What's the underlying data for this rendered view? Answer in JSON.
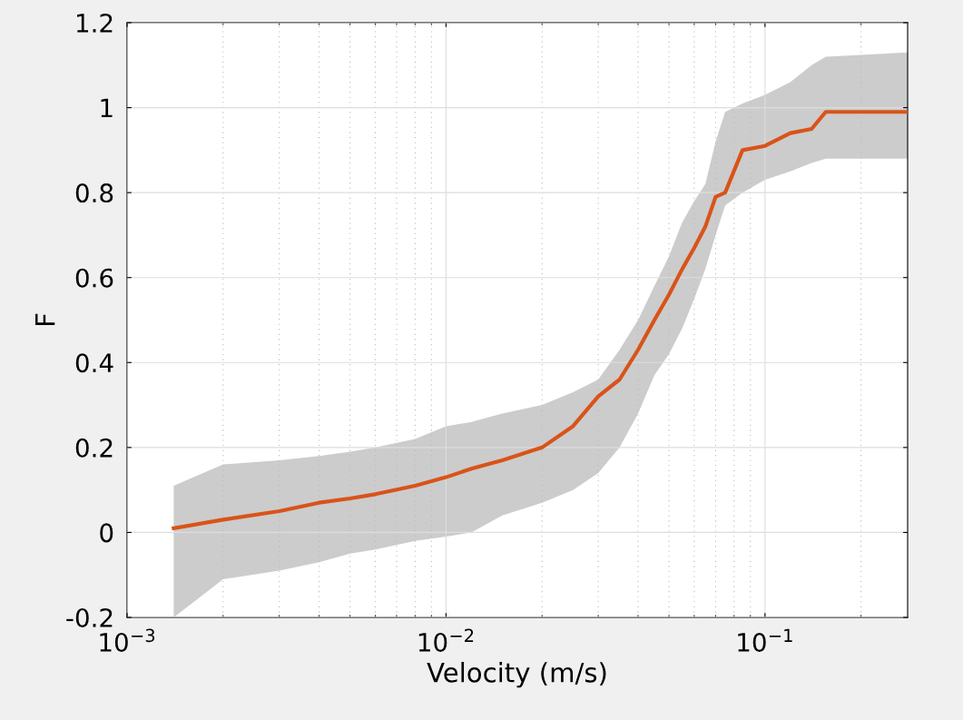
{
  "chart_data": {
    "type": "line",
    "xlabel": "Velocity (m/s)",
    "ylabel": "F",
    "log": "x",
    "grid": true,
    "legend": false,
    "marker": "none",
    "line_style": "solid",
    "x": [
      0.0014,
      0.002,
      0.003,
      0.004,
      0.005,
      0.006,
      0.008,
      0.01,
      0.012,
      0.015,
      0.02,
      0.025,
      0.03,
      0.035,
      0.04,
      0.045,
      0.05,
      0.055,
      0.06,
      0.065,
      0.07,
      0.075,
      0.085,
      0.1,
      0.12,
      0.14,
      0.155,
      0.28
    ],
    "series": [
      {
        "color": "#d95319",
        "values": [
          0.01,
          0.03,
          0.05,
          0.07,
          0.08,
          0.09,
          0.11,
          0.13,
          0.15,
          0.17,
          0.2,
          0.25,
          0.32,
          0.36,
          0.43,
          0.5,
          0.56,
          0.62,
          0.67,
          0.72,
          0.79,
          0.8,
          0.9,
          0.91,
          0.94,
          0.95,
          0.99,
          0.99
        ],
        "lower": [
          -0.2,
          -0.11,
          -0.09,
          -0.07,
          -0.05,
          -0.04,
          -0.02,
          -0.01,
          0.0,
          0.04,
          0.07,
          0.1,
          0.14,
          0.2,
          0.28,
          0.37,
          0.42,
          0.48,
          0.55,
          0.62,
          0.7,
          0.77,
          0.8,
          0.83,
          0.85,
          0.87,
          0.88,
          0.88
        ],
        "upper": [
          0.11,
          0.16,
          0.17,
          0.18,
          0.19,
          0.2,
          0.22,
          0.25,
          0.26,
          0.28,
          0.3,
          0.33,
          0.36,
          0.43,
          0.5,
          0.58,
          0.65,
          0.73,
          0.78,
          0.82,
          0.92,
          0.99,
          1.01,
          1.03,
          1.06,
          1.1,
          1.12,
          1.13
        ]
      }
    ],
    "xlim": [
      0.001,
      0.28
    ],
    "xticks": [
      {
        "value": 0.001,
        "label": "10$^{−3}$"
      },
      {
        "value": 0.01,
        "label": "10$^{−2}$"
      },
      {
        "value": 0.1,
        "label": "10$^{−1}$"
      }
    ],
    "ylim": [
      -0.2,
      1.2
    ],
    "yticks": [
      {
        "value": -0.2,
        "label": "-0.2"
      },
      0,
      0.2,
      0.4,
      0.6,
      0.8,
      1,
      1.2
    ]
  }
}
